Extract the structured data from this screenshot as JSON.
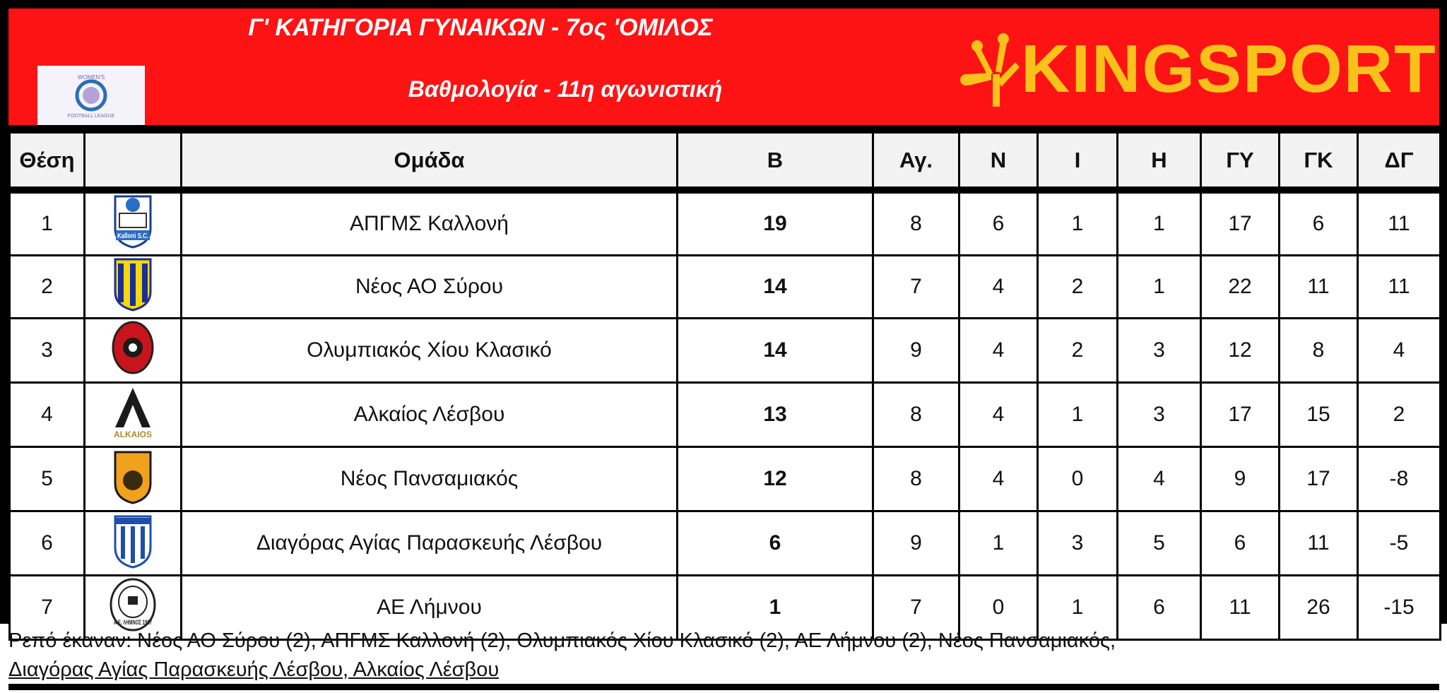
{
  "header": {
    "title": "Γ' ΚΑΤΗΓΟΡΙΑ ΓΥΝΑΙΚΩΝ - 7ος 'ΟΜΙΛΟΣ",
    "subtitle": "Βαθμολογία - 11η αγωνιστική",
    "league_logo": "WOMEN'S FOOTBALL LEAGUE",
    "brand": "KINGSPORT",
    "colors": {
      "banner": "#fd1314",
      "brand": "#f9c21a"
    }
  },
  "table": {
    "columns": [
      "Θέση",
      "",
      "Ομάδα",
      "Β",
      "Αγ.",
      "Ν",
      "Ι",
      "Η",
      "ΓΥ",
      "ΓΚ",
      "ΔΓ"
    ],
    "rows": [
      {
        "pos": "1",
        "crest": "kalloni-crest",
        "crest_text": "Kalloni S.C.",
        "team": "ΑΠΓΜΣ Καλλονή",
        "pts": "19",
        "gp": "8",
        "w": "6",
        "d": "1",
        "l": "1",
        "gf": "17",
        "ga": "6",
        "gd": "11"
      },
      {
        "pos": "2",
        "crest": "syros-crest",
        "team": "Νέος ΑΟ Σύρου",
        "pts": "14",
        "gp": "7",
        "w": "4",
        "d": "2",
        "l": "1",
        "gf": "22",
        "ga": "11",
        "gd": "11"
      },
      {
        "pos": "3",
        "crest": "olympiakos-chiou-crest",
        "team": "Ολυμπιακός Χίου Κλασικό",
        "pts": "14",
        "gp": "9",
        "w": "4",
        "d": "2",
        "l": "3",
        "gf": "12",
        "ga": "8",
        "gd": "4"
      },
      {
        "pos": "4",
        "crest": "alkaios-crest",
        "crest_text": "ALKAIOS",
        "team": "Αλκαίος Λέσβου",
        "pts": "13",
        "gp": "8",
        "w": "4",
        "d": "1",
        "l": "3",
        "gf": "17",
        "ga": "15",
        "gd": "2"
      },
      {
        "pos": "5",
        "crest": "pansamiakos-crest",
        "team": "Νέος Πανσαμιακός",
        "pts": "12",
        "gp": "8",
        "w": "4",
        "d": "0",
        "l": "4",
        "gf": "9",
        "ga": "17",
        "gd": "-8"
      },
      {
        "pos": "6",
        "crest": "diagoras-crest",
        "team": "Διαγόρας Αγίας Παρασκευής Λέσβου",
        "pts": "6",
        "gp": "9",
        "w": "1",
        "d": "3",
        "l": "5",
        "gf": "6",
        "ga": "11",
        "gd": "-5"
      },
      {
        "pos": "7",
        "crest": "ae-limnou-crest",
        "crest_text": "Α.Ε. ΛΗΜΝΟΣ 1987",
        "team": "ΑΕ Λήμνου",
        "pts": "1",
        "gp": "7",
        "w": "0",
        "d": "1",
        "l": "6",
        "gf": "11",
        "ga": "26",
        "gd": "-15"
      }
    ]
  },
  "footer": {
    "line1": "Ρεπό έκαναν:  Νέος ΑΟ Σύρου (2),  ΑΠΓΜΣ Καλλονή (2),  Ολυμπιακός Χίου Κλασικό (2),  ΑΕ Λήμνου (2),  Νέος Πανσαμιακός,",
    "line2": "Διαγόρας Αγίας Παρασκευής Λέσβου,  Αλκαίος Λέσβου"
  }
}
